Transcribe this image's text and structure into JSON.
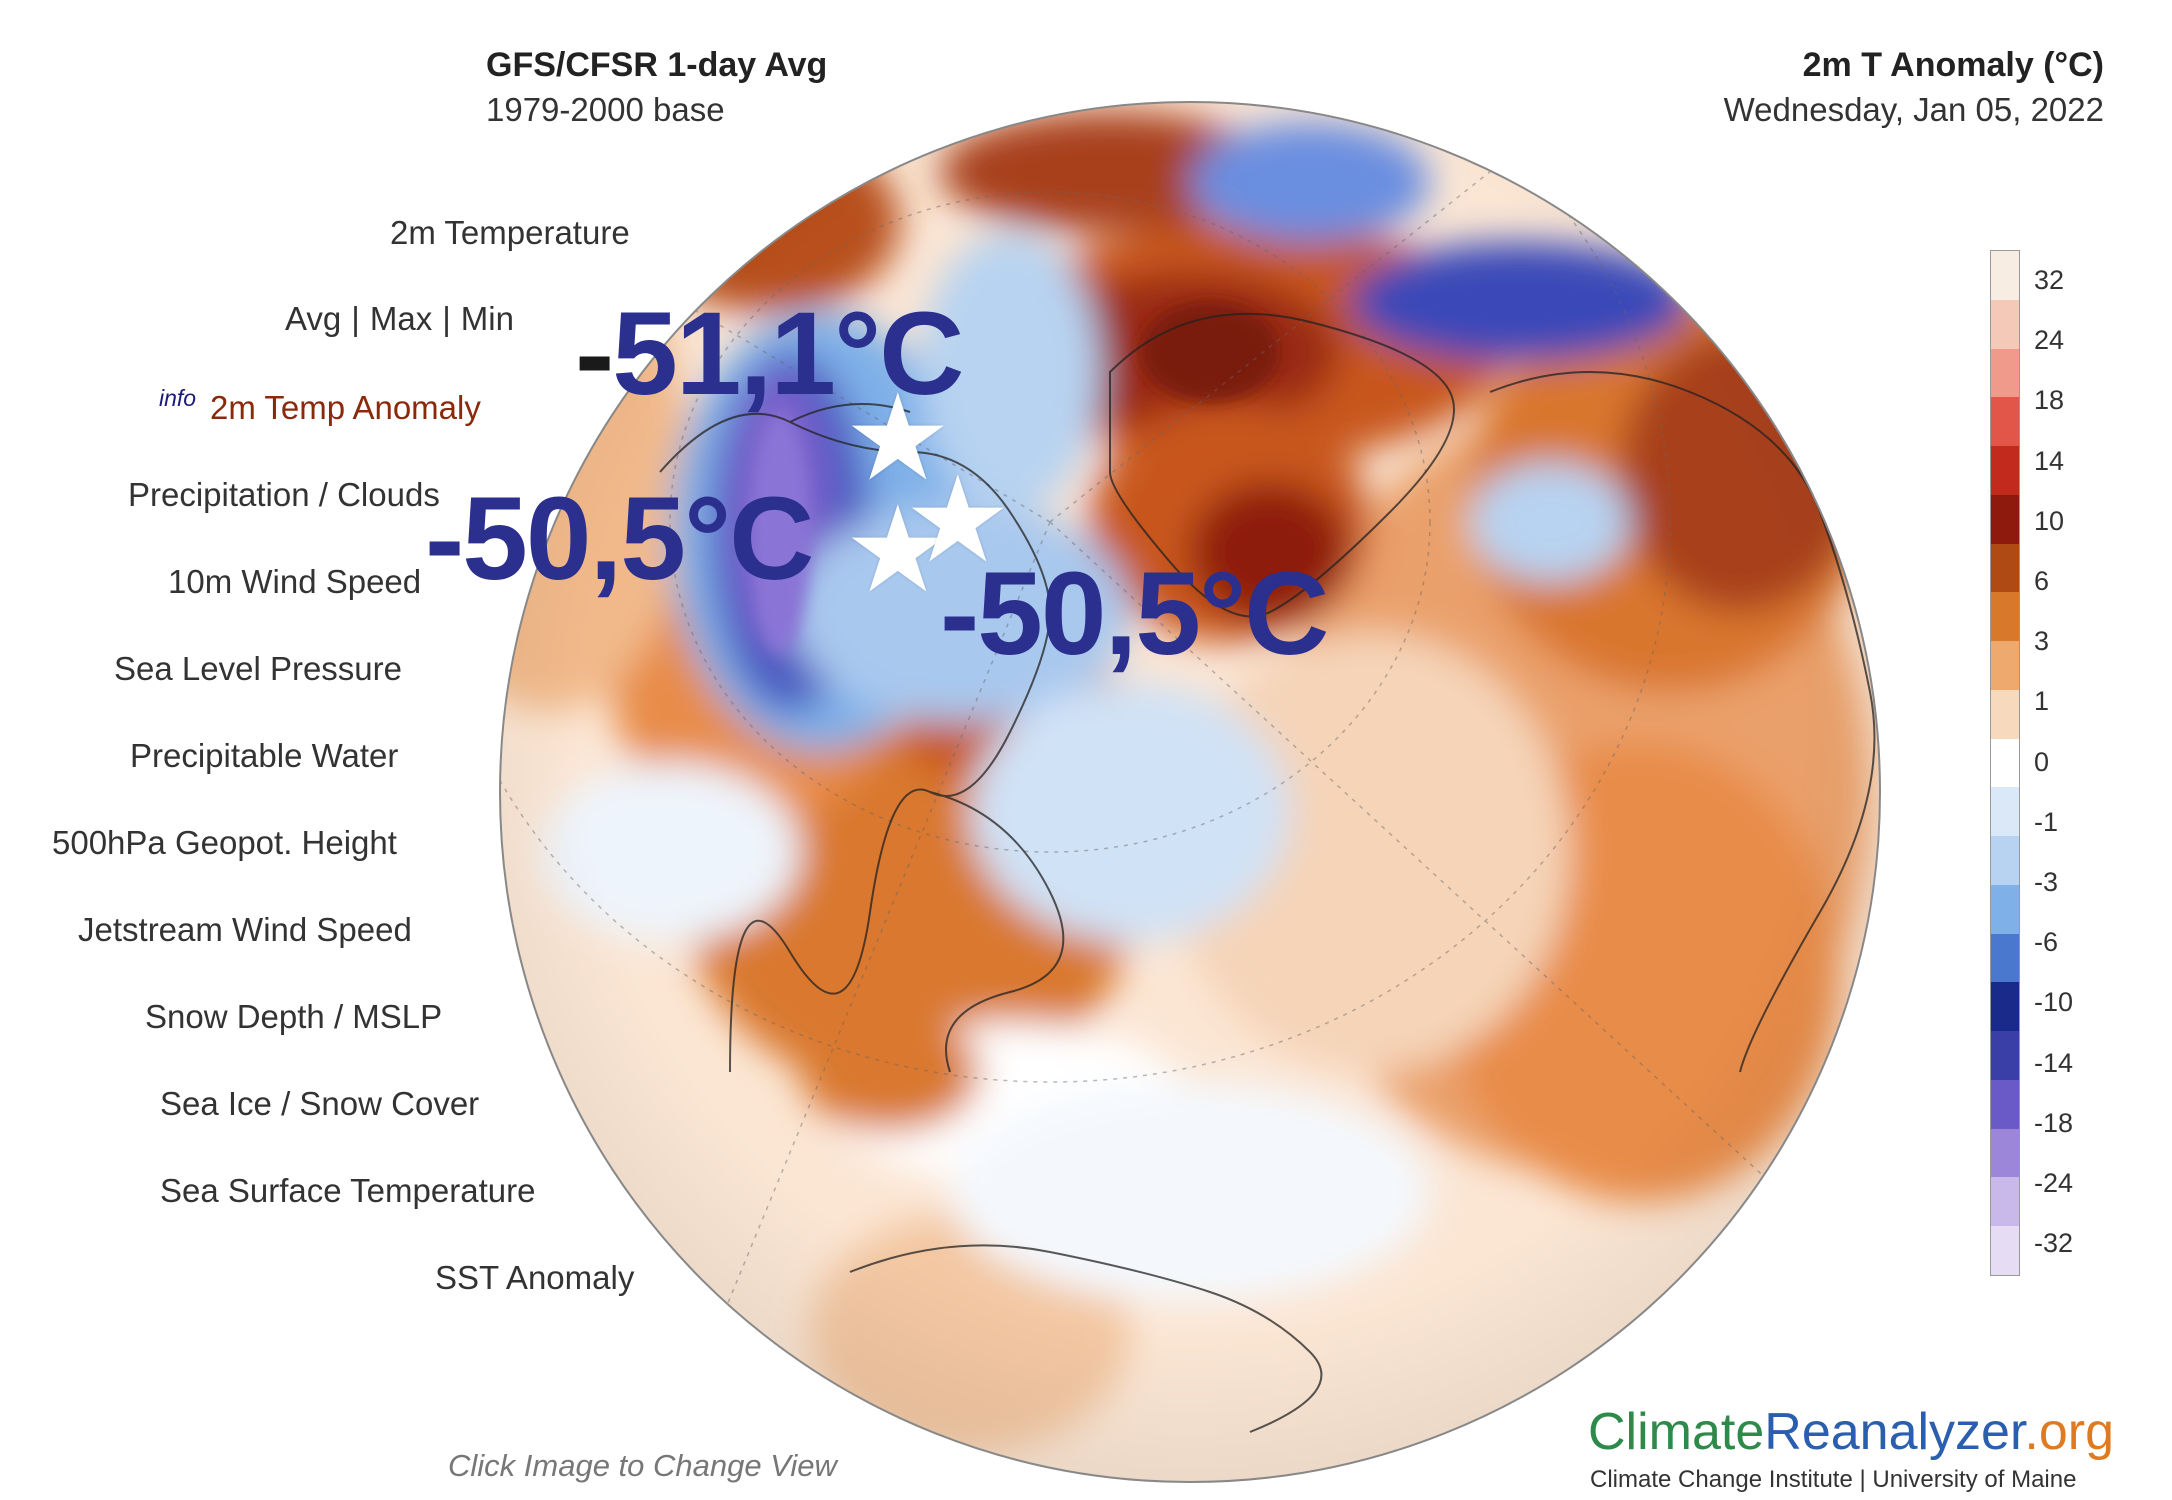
{
  "header": {
    "left_title": "GFS/CFSR 1-day Avg",
    "left_sub": "1979-2000 base",
    "right_title": "2m T Anomaly (°C)",
    "right_sub": "Wednesday, Jan 05, 2022"
  },
  "menu": {
    "temp_heading": "2m Temperature",
    "avg": "Avg",
    "max": "Max",
    "min": "Min",
    "sep": "|",
    "info": "info",
    "items": [
      "2m Temp Anomaly",
      "Precipitation / Clouds",
      "10m Wind Speed",
      "Sea Level Pressure",
      "Precipitable Water",
      "500hPa Geopot. Height",
      "Jetstream Wind Speed",
      "Snow Depth / MSLP",
      "Sea Ice / Snow Cover",
      "Sea Surface Temperature",
      "SST Anomaly"
    ]
  },
  "callouts": [
    {
      "minus": "-",
      "value": "51,1°C"
    },
    {
      "minus": "-",
      "value": "50,5°C"
    },
    {
      "minus": "-",
      "value": "50,5°C"
    }
  ],
  "legend": {
    "ticks": [
      "32",
      "24",
      "18",
      "14",
      "10",
      "6",
      "3",
      "1",
      "0",
      "-1",
      "-3",
      "-6",
      "-10",
      "-14",
      "-18",
      "-24",
      "-32"
    ],
    "colors": [
      "#f7ede2",
      "#f4c9b8",
      "#ef9a8a",
      "#e2564a",
      "#c22a1e",
      "#8e1a0e",
      "#b04a14",
      "#d8782a",
      "#eeaa6e",
      "#f7d9bd",
      "#ffffff",
      "#dbe8f7",
      "#b7d3f1",
      "#7fb0e8",
      "#4a78cf",
      "#1a2a8a",
      "#3a3fa8",
      "#6a5ac8",
      "#9b86da",
      "#c9b8ea",
      "#e6ddf5"
    ]
  },
  "footer": {
    "click_hint": "Click Image to Change View",
    "logo_part1": "Climate",
    "logo_part2": "Reanalyzer",
    "logo_part3": ".org",
    "logo_sub": "Climate Change Institute | University of Maine"
  },
  "icons": {
    "star": "star-icon"
  }
}
